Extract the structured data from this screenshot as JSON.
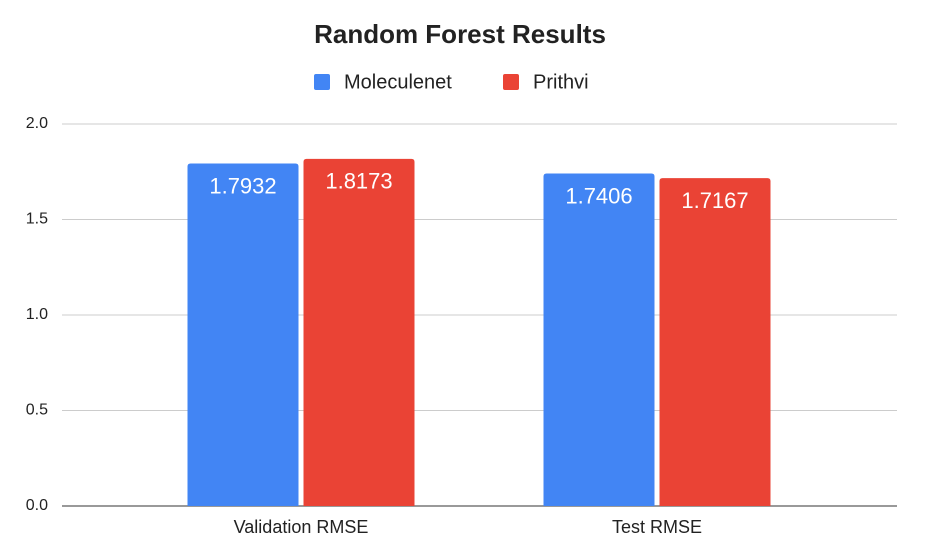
{
  "chart_data": {
    "type": "bar",
    "title": "Random Forest Results",
    "categories": [
      "Validation RMSE",
      "Test RMSE"
    ],
    "series": [
      {
        "name": "Moleculenet",
        "color": "#4285f4",
        "values": [
          1.7932,
          1.7406
        ]
      },
      {
        "name": "Prithvi",
        "color": "#ea4335",
        "values": [
          1.8173,
          1.7167
        ]
      }
    ],
    "ylim": [
      0,
      2
    ],
    "yticks": [
      {
        "value": 0,
        "label": "0.0"
      },
      {
        "value": 0.5,
        "label": "0.5"
      },
      {
        "value": 1,
        "label": "1.0"
      },
      {
        "value": 1.5,
        "label": "1.5"
      },
      {
        "value": 2,
        "label": "2.0"
      }
    ],
    "grid": true,
    "legend": "top"
  }
}
